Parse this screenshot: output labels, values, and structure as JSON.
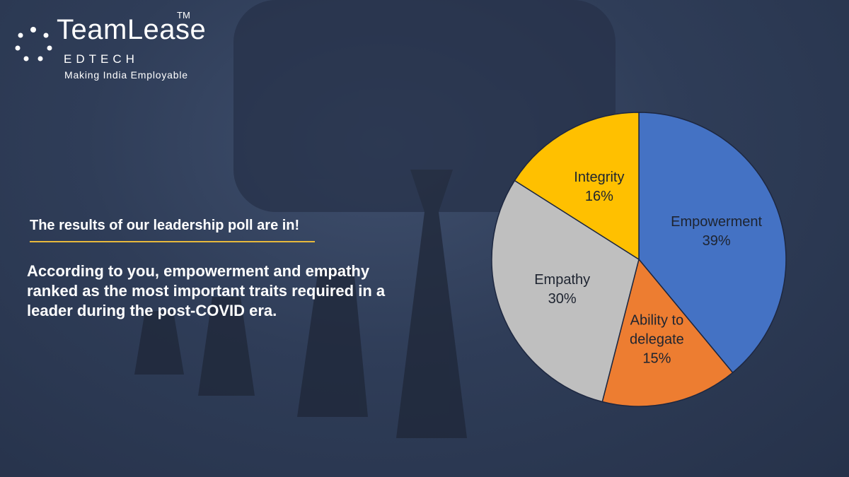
{
  "brand": {
    "name": "TeamLease",
    "trademark": "TM",
    "division": "EDTECH",
    "tagline": "Making India Employable"
  },
  "heading": "The results of our leadership poll are in!",
  "body": "According to you, empowerment and empathy ranked as the most important traits required in a leader during the post-COVID era.",
  "chart_data": {
    "type": "pie",
    "categories": [
      "Empowerment",
      "Ability to delegate",
      "Empathy",
      "Integrity"
    ],
    "values": [
      39,
      15,
      30,
      16
    ],
    "value_labels": [
      "39%",
      "15%",
      "30%",
      "16%"
    ],
    "colors": [
      "#4472c4",
      "#ed7d31",
      "#bfbfbf",
      "#ffc000"
    ],
    "start_angle": 0,
    "direction": "clockwise"
  }
}
